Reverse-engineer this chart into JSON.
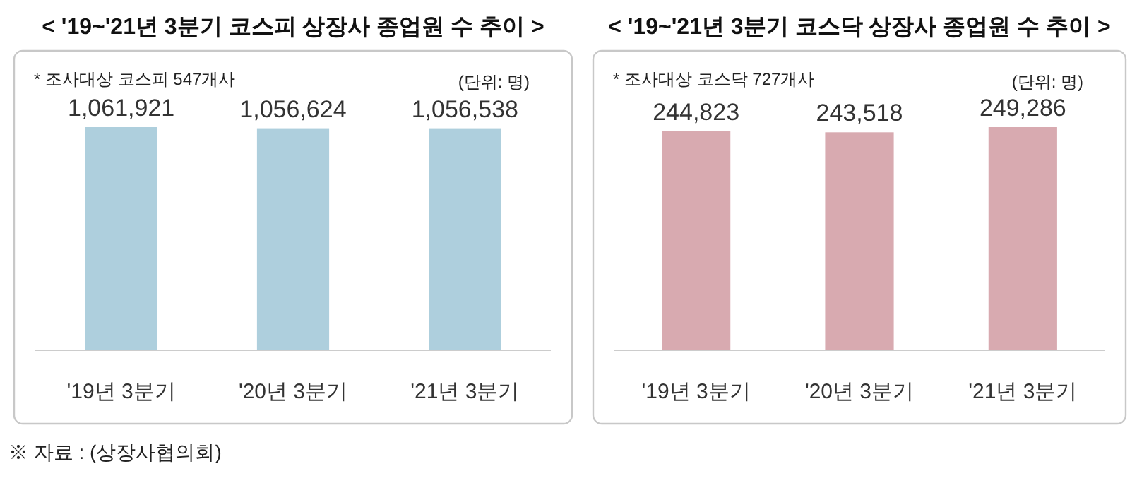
{
  "chart_data": [
    {
      "type": "bar",
      "title": "< '19~'21년 3분기 코스피 상장사 종업원 수 추이 >",
      "categories": [
        "'19년 3분기",
        "'20년 3분기",
        "'21년 3분기"
      ],
      "series": [
        {
          "color": "#aecfdd",
          "values": [
            1061921,
            1056624,
            1056538
          ],
          "value_labels": [
            "1,061,921",
            "1,056,624",
            "1,056,538"
          ]
        }
      ],
      "annotations": [
        "* 조사대상 코스피 547개사",
        "(단위: 명)",
        "※ 자료 : (상장사협의회)"
      ]
    },
    {
      "type": "bar",
      "title": "< '19~'21년 3분기 코스닥 상장사 종업원 수 추이 >",
      "categories": [
        "'19년 3분기",
        "'20년 3분기",
        "'21년 3분기"
      ],
      "series": [
        {
          "color": "#d8aab0",
          "values": [
            244823,
            243518,
            249286
          ],
          "value_labels": [
            "244,823",
            "243,518",
            "249,286"
          ]
        }
      ],
      "annotations": [
        "* 조사대상 코스닥 727개사",
        "(단위: 명)"
      ]
    }
  ]
}
